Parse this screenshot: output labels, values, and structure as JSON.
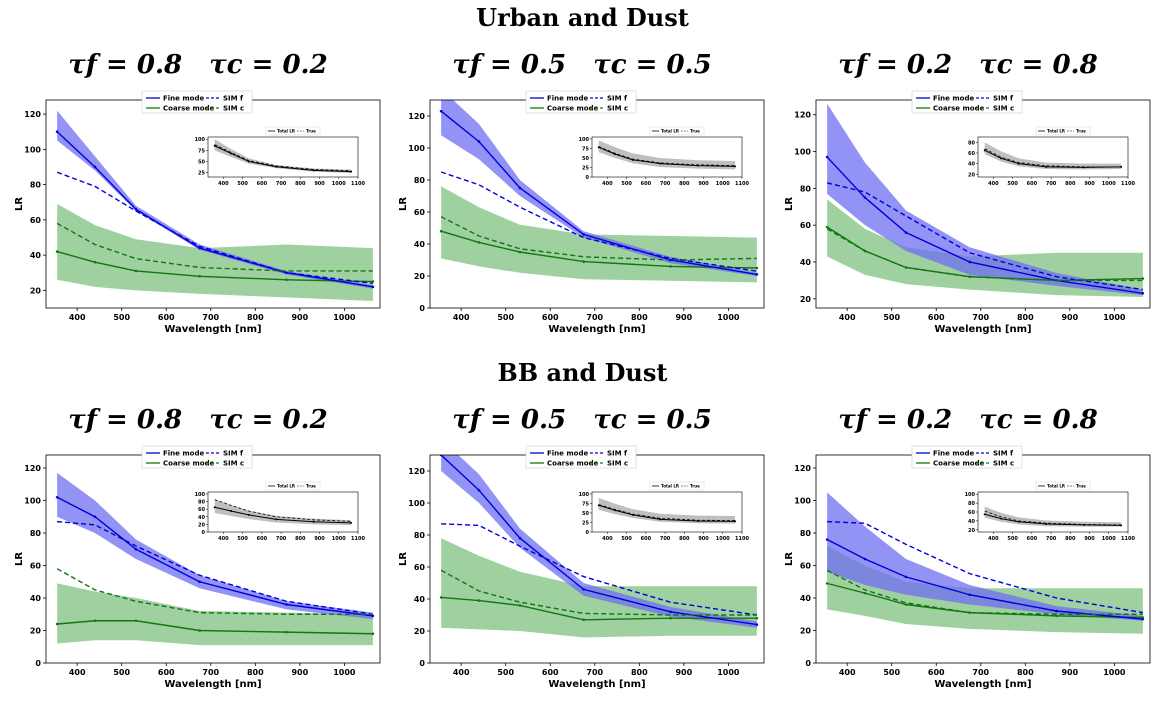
{
  "titles": {
    "row1": "Urban and Dust",
    "row2": "BB and Dust"
  },
  "colors": {
    "fine": "#0000dd",
    "fine_band": "#6f6ff2",
    "coarse": "#117711",
    "coarse_band": "#7fc07f",
    "total": "#000000",
    "total_band": "#bfbfbf"
  },
  "chart_data": [
    {
      "type": "line",
      "panel_label": "τf = 0.8   τc = 0.2",
      "xlabel": "Wavelength [nm]",
      "ylabel": "LR",
      "xlim": [
        330,
        1080
      ],
      "ylim": [
        10,
        128
      ],
      "yticks": [
        20,
        40,
        60,
        80,
        100,
        120
      ],
      "xticks": [
        400,
        500,
        600,
        700,
        800,
        900,
        1000
      ],
      "legend": [
        "Fine mode",
        "Coarse mode",
        "SIM f",
        "SIM c"
      ],
      "x": [
        355,
        440,
        532,
        675,
        870,
        1064
      ],
      "fine": [
        110,
        90,
        66,
        44,
        30,
        22
      ],
      "fine_lo": [
        105,
        88,
        65,
        43,
        29,
        21
      ],
      "fine_hi": [
        122,
        96,
        68,
        46,
        31,
        23
      ],
      "coarse": [
        42,
        36,
        31,
        28,
        26,
        25
      ],
      "coarse_lo": [
        26,
        22,
        20,
        18,
        16,
        14
      ],
      "coarse_hi": [
        69,
        57,
        49,
        44,
        46,
        44
      ],
      "sim_f": [
        87,
        79,
        65,
        45,
        30,
        24
      ],
      "sim_c": [
        58,
        46,
        38,
        33,
        31,
        31
      ],
      "inset": {
        "legend": [
          "Total LR",
          "True"
        ],
        "xlim": [
          320,
          1100
        ],
        "ylim": [
          15,
          105
        ],
        "yticks": [
          25,
          50,
          75,
          100
        ],
        "xticks": [
          400,
          500,
          600,
          700,
          800,
          900,
          1000,
          1100
        ],
        "total": [
          85,
          68,
          50,
          38,
          30,
          27
        ],
        "total_lo": [
          75,
          60,
          45,
          35,
          27,
          24
        ],
        "total_hi": [
          100,
          78,
          57,
          42,
          34,
          32
        ],
        "true": [
          88,
          70,
          52,
          40,
          32,
          29
        ]
      }
    },
    {
      "type": "line",
      "panel_label": "τf = 0.5   τc = 0.5",
      "xlabel": "Wavelength [nm]",
      "ylabel": "LR",
      "xlim": [
        330,
        1080
      ],
      "ylim": [
        0,
        130
      ],
      "yticks": [
        0,
        20,
        40,
        60,
        80,
        100,
        120
      ],
      "xticks": [
        400,
        500,
        600,
        700,
        800,
        900,
        1000
      ],
      "legend": [
        "Fine mode",
        "Coarse mode",
        "SIM f",
        "SIM c"
      ],
      "x": [
        355,
        440,
        532,
        675,
        870,
        1064
      ],
      "fine": [
        123,
        104,
        75,
        46,
        30,
        21
      ],
      "fine_lo": [
        108,
        93,
        70,
        44,
        28,
        20
      ],
      "fine_hi": [
        137,
        115,
        80,
        48,
        32,
        22
      ],
      "coarse": [
        48,
        41,
        35,
        29,
        26,
        25
      ],
      "coarse_lo": [
        31,
        26,
        22,
        18,
        17,
        16
      ],
      "coarse_hi": [
        76,
        63,
        52,
        46,
        45,
        44
      ],
      "sim_f": [
        85,
        77,
        63,
        44,
        31,
        23
      ],
      "sim_c": [
        57,
        45,
        37,
        32,
        30,
        31
      ],
      "inset": {
        "legend": [
          "Total LR",
          "True"
        ],
        "xlim": [
          320,
          1100
        ],
        "ylim": [
          0,
          105
        ],
        "yticks": [
          0,
          25,
          50,
          75,
          100
        ],
        "xticks": [
          400,
          500,
          600,
          700,
          800,
          900,
          1000,
          1100
        ],
        "total": [
          78,
          60,
          45,
          35,
          30,
          28
        ],
        "total_lo": [
          65,
          50,
          36,
          26,
          22,
          20
        ],
        "total_hi": [
          96,
          78,
          62,
          50,
          44,
          42
        ],
        "true": [
          80,
          62,
          47,
          37,
          32,
          30
        ]
      }
    },
    {
      "type": "line",
      "panel_label": "τf = 0.2   τc = 0.8",
      "xlabel": "Wavelength [nm]",
      "ylabel": "LR",
      "xlim": [
        330,
        1080
      ],
      "ylim": [
        15,
        128
      ],
      "yticks": [
        20,
        40,
        60,
        80,
        100,
        120
      ],
      "xticks": [
        400,
        500,
        600,
        700,
        800,
        900,
        1000
      ],
      "legend": [
        "Fine mode",
        "Coarse mode",
        "SIM f",
        "SIM c"
      ],
      "x": [
        355,
        440,
        532,
        675,
        870,
        1064
      ],
      "fine": [
        97,
        75,
        56,
        40,
        30,
        23
      ],
      "fine_lo": [
        77,
        60,
        46,
        33,
        27,
        22
      ],
      "fine_hi": [
        126,
        94,
        68,
        48,
        34,
        25
      ],
      "coarse": [
        59,
        46,
        37,
        32,
        30,
        31
      ],
      "coarse_lo": [
        43,
        33,
        28,
        25,
        22,
        21
      ],
      "coarse_hi": [
        74,
        58,
        48,
        43,
        45,
        45
      ],
      "sim_f": [
        83,
        78,
        65,
        45,
        32,
        25
      ],
      "sim_c": [
        58,
        46,
        37,
        32,
        30,
        30
      ],
      "inset": {
        "legend": [
          "Total LR",
          "True"
        ],
        "xlim": [
          320,
          1100
        ],
        "ylim": [
          15,
          90
        ],
        "yticks": [
          20,
          40,
          60,
          80
        ],
        "xticks": [
          400,
          500,
          600,
          700,
          800,
          900,
          1000,
          1100
        ],
        "total": [
          65,
          50,
          40,
          34,
          33,
          34
        ],
        "total_lo": [
          58,
          44,
          35,
          30,
          29,
          30
        ],
        "total_hi": [
          80,
          63,
          50,
          42,
          40,
          40
        ],
        "true": [
          68,
          52,
          42,
          36,
          34,
          34
        ]
      }
    },
    {
      "type": "line",
      "panel_label": "τf = 0.8   τc = 0.2",
      "xlabel": "Wavelength [nm]",
      "ylabel": "LR",
      "xlim": [
        330,
        1080
      ],
      "ylim": [
        0,
        128
      ],
      "yticks": [
        0,
        20,
        40,
        60,
        80,
        100,
        120
      ],
      "xticks": [
        400,
        500,
        600,
        700,
        800,
        900,
        1000
      ],
      "legend": [
        "Fine mode",
        "Coarse mode",
        "SIM f",
        "SIM c"
      ],
      "x": [
        355,
        440,
        532,
        675,
        870,
        1064
      ],
      "fine": [
        102,
        90,
        70,
        50,
        36,
        29
      ],
      "fine_lo": [
        90,
        80,
        64,
        46,
        33,
        27
      ],
      "fine_hi": [
        117,
        100,
        76,
        54,
        38,
        31
      ],
      "coarse": [
        24,
        26,
        26,
        20,
        19,
        18
      ],
      "coarse_lo": [
        12,
        14,
        14,
        11,
        11,
        11
      ],
      "coarse_hi": [
        49,
        44,
        40,
        32,
        31,
        30
      ],
      "sim_f": [
        87,
        85,
        72,
        54,
        38,
        30
      ],
      "sim_c": [
        58,
        45,
        38,
        31,
        30,
        30
      ],
      "inset": {
        "legend": [
          "Total LR",
          "True"
        ],
        "xlim": [
          320,
          1100
        ],
        "ylim": [
          0,
          105
        ],
        "yticks": [
          0,
          20,
          40,
          60,
          80,
          100
        ],
        "xticks": [
          400,
          500,
          600,
          700,
          800,
          900,
          1000,
          1100
        ],
        "total": [
          65,
          55,
          45,
          33,
          27,
          24
        ],
        "total_lo": [
          50,
          42,
          34,
          25,
          20,
          18
        ],
        "total_hi": [
          85,
          70,
          56,
          42,
          35,
          31
        ],
        "true": [
          85,
          70,
          55,
          40,
          32,
          28
        ]
      }
    },
    {
      "type": "line",
      "panel_label": "τf = 0.5   τc = 0.5",
      "xlabel": "Wavelength [nm]",
      "ylabel": "LR",
      "xlim": [
        330,
        1080
      ],
      "ylim": [
        0,
        130
      ],
      "yticks": [
        0,
        20,
        40,
        60,
        80,
        100,
        120
      ],
      "xticks": [
        400,
        500,
        600,
        700,
        800,
        900,
        1000
      ],
      "legend": [
        "Fine mode",
        "Coarse mode",
        "SIM f",
        "SIM c"
      ],
      "x": [
        355,
        440,
        532,
        675,
        870,
        1064
      ],
      "fine": [
        130,
        108,
        78,
        46,
        32,
        24
      ],
      "fine_lo": [
        120,
        100,
        72,
        42,
        29,
        22
      ],
      "fine_hi": [
        140,
        118,
        84,
        50,
        35,
        26
      ],
      "coarse": [
        41,
        39,
        36,
        27,
        28,
        28
      ],
      "coarse_lo": [
        22,
        21,
        20,
        16,
        17,
        17
      ],
      "coarse_hi": [
        78,
        67,
        57,
        48,
        48,
        48
      ],
      "sim_f": [
        87,
        86,
        73,
        54,
        38,
        30
      ],
      "sim_c": [
        58,
        45,
        38,
        31,
        30,
        30
      ],
      "inset": {
        "legend": [
          "Total LR",
          "True"
        ],
        "xlim": [
          320,
          1100
        ],
        "ylim": [
          0,
          105
        ],
        "yticks": [
          0,
          25,
          50,
          75,
          100
        ],
        "xticks": [
          400,
          500,
          600,
          700,
          800,
          900,
          1000,
          1100
        ],
        "total": [
          70,
          57,
          45,
          33,
          29,
          28
        ],
        "total_lo": [
          58,
          47,
          37,
          27,
          23,
          22
        ],
        "total_hi": [
          90,
          74,
          60,
          48,
          43,
          42
        ],
        "true": [
          72,
          59,
          47,
          36,
          31,
          30
        ]
      }
    },
    {
      "type": "line",
      "panel_label": "τf = 0.2   τc = 0.8",
      "xlabel": "Wavelength [nm]",
      "ylabel": "LR",
      "xlim": [
        330,
        1080
      ],
      "ylim": [
        0,
        128
      ],
      "yticks": [
        0,
        20,
        40,
        60,
        80,
        100,
        120
      ],
      "xticks": [
        400,
        500,
        600,
        700,
        800,
        900,
        1000
      ],
      "legend": [
        "Fine mode",
        "Coarse mode",
        "SIM f",
        "SIM c"
      ],
      "x": [
        355,
        440,
        532,
        675,
        870,
        1064
      ],
      "fine": [
        76,
        64,
        53,
        42,
        32,
        27
      ],
      "fine_lo": [
        56,
        48,
        42,
        36,
        30,
        26
      ],
      "fine_hi": [
        105,
        84,
        64,
        48,
        35,
        29
      ],
      "coarse": [
        49,
        43,
        36,
        31,
        29,
        28
      ],
      "coarse_lo": [
        33,
        29,
        24,
        21,
        19,
        18
      ],
      "coarse_hi": [
        72,
        60,
        50,
        46,
        46,
        46
      ],
      "sim_f": [
        87,
        86,
        73,
        55,
        40,
        31
      ],
      "sim_c": [
        57,
        45,
        37,
        31,
        30,
        30
      ],
      "inset": {
        "legend": [
          "Total LR",
          "True"
        ],
        "xlim": [
          320,
          1100
        ],
        "ylim": [
          15,
          105
        ],
        "yticks": [
          20,
          40,
          60,
          80,
          100
        ],
        "xticks": [
          400,
          500,
          600,
          700,
          800,
          900,
          1000,
          1100
        ],
        "total": [
          55,
          45,
          38,
          33,
          31,
          30
        ],
        "total_lo": [
          47,
          38,
          32,
          28,
          27,
          27
        ],
        "total_hi": [
          72,
          58,
          48,
          41,
          38,
          37
        ],
        "true": [
          62,
          49,
          40,
          35,
          32,
          31
        ]
      }
    }
  ]
}
